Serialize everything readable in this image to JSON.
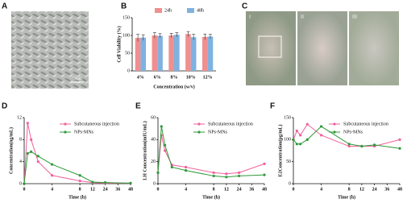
{
  "panel_labels": [
    "A",
    "B",
    "C",
    "D",
    "E",
    "F"
  ],
  "image_labels": {
    "scale_bar": "50μm",
    "photos": [
      "I",
      "II",
      "III"
    ]
  },
  "chart_data": [
    {
      "type": "bar",
      "xlabel": "Concentration (w/v)",
      "ylabel": "Cell Viability (%)",
      "categories": [
        "4%",
        "6%",
        "8%",
        "10%",
        "12%"
      ],
      "series": [
        {
          "name": "24h",
          "color": "#ef8f8f",
          "values": [
            93,
            100,
            100,
            104,
            96
          ],
          "errors": [
            10,
            8,
            6,
            7,
            8
          ]
        },
        {
          "name": "48h",
          "color": "#7fb2e0",
          "values": [
            94,
            99,
            102,
            95,
            97
          ],
          "errors": [
            8,
            6,
            6,
            8,
            6
          ]
        }
      ],
      "ylim": [
        0,
        150
      ],
      "yticks": [
        0,
        50,
        100,
        150
      ],
      "legend": "top"
    },
    {
      "type": "line",
      "xlabel": "Time (h)",
      "ylabel": "Concentration(ng/mL)",
      "x": [
        0,
        0.5,
        1,
        2,
        4,
        8,
        12,
        24,
        48
      ],
      "series": [
        {
          "name": "Subcutaneous injection",
          "color": "#f0609a",
          "values": [
            0,
            11,
            8,
            4,
            1.5,
            0.5,
            0.2,
            0.1,
            0.1
          ]
        },
        {
          "name": "NPs-MNs",
          "color": "#2e9a3a",
          "values": [
            0,
            5.5,
            5.8,
            5,
            3.5,
            1.5,
            0.3,
            0.2,
            0.1
          ]
        }
      ],
      "xlim": [
        0,
        48
      ],
      "xticks": [
        0,
        4,
        8,
        12,
        24,
        36,
        48
      ],
      "ylim": [
        0,
        12
      ],
      "yticks": [
        0,
        4,
        8,
        12
      ],
      "legend": "upper right"
    },
    {
      "type": "line",
      "xlabel": "Time (h)",
      "ylabel": "LH Concentration(mIU/mL)",
      "x": [
        0,
        0.5,
        1,
        2,
        4,
        8,
        12,
        24,
        48
      ],
      "series": [
        {
          "name": "Subcutaneous injection",
          "color": "#f0609a",
          "values": [
            10,
            44,
            30,
            17,
            15,
            10,
            9,
            10,
            18
          ]
        },
        {
          "name": "NPs-MNs",
          "color": "#2e9a3a",
          "values": [
            10,
            52,
            35,
            15,
            12,
            7,
            6,
            7,
            8
          ]
        }
      ],
      "xlim": [
        0,
        48
      ],
      "xticks": [
        0,
        4,
        8,
        12,
        24,
        36,
        48
      ],
      "ylim": [
        0,
        60
      ],
      "yticks": [
        0,
        20,
        40,
        60
      ],
      "legend": "upper right"
    },
    {
      "type": "line",
      "xlabel": "Time (h)",
      "ylabel": "E2Concentration(pg/mL)",
      "x": [
        0,
        0.5,
        1,
        2,
        4,
        8,
        12,
        24,
        48
      ],
      "series": [
        {
          "name": "Subcutaneous injection",
          "color": "#f0609a",
          "values": [
            100,
            120,
            110,
            135,
            110,
            85,
            85,
            85,
            100
          ]
        },
        {
          "name": "NPs-MNs",
          "color": "#2e9a3a",
          "values": [
            100,
            90,
            90,
            100,
            130,
            90,
            85,
            88,
            80
          ]
        }
      ],
      "xlim": [
        0,
        48
      ],
      "xticks": [
        0,
        4,
        8,
        12,
        24,
        36,
        48
      ],
      "ylim": [
        0,
        150
      ],
      "yticks": [
        0,
        50,
        100,
        150
      ],
      "legend": "upper right"
    }
  ]
}
